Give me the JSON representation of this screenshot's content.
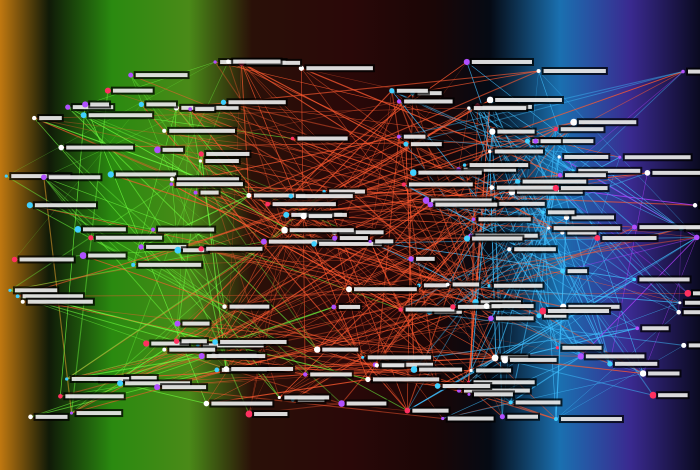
{
  "background": {
    "stops": [
      {
        "offset": 0,
        "color": "#c07810"
      },
      {
        "offset": 0.07,
        "color": "#101a08"
      },
      {
        "offset": 0.16,
        "color": "#2a8a10"
      },
      {
        "offset": 0.27,
        "color": "#4a8a18"
      },
      {
        "offset": 0.36,
        "color": "#2a1008"
      },
      {
        "offset": 0.5,
        "color": "#2a0808"
      },
      {
        "offset": 0.62,
        "color": "#1a0606"
      },
      {
        "offset": 0.7,
        "color": "#050a14"
      },
      {
        "offset": 0.8,
        "color": "#1a70b0"
      },
      {
        "offset": 0.9,
        "color": "#3a2a90"
      },
      {
        "offset": 1,
        "color": "#0a0a20"
      }
    ]
  },
  "edge_colors": {
    "left": "#ffb030",
    "green": "#70ff40",
    "center": "#ff5a30",
    "right": "#40c0ff",
    "far_right": "#b040ff"
  },
  "node_colors": [
    "#ff3060",
    "#ffffff",
    "#b050ff",
    "#40d0ff"
  ],
  "label_color": "#ffffff"
}
